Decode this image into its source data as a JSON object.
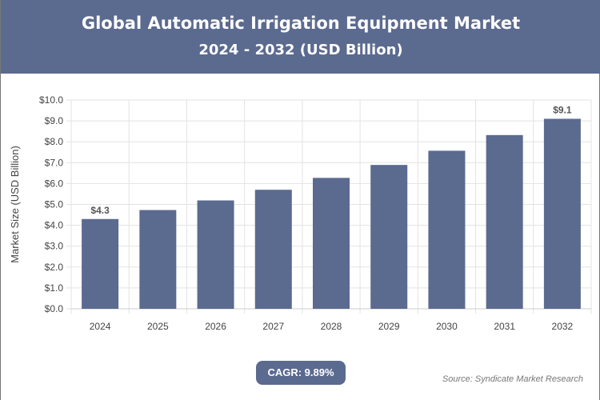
{
  "header": {
    "title": "Global Automatic Irrigation Equipment Market",
    "subtitle": "2024 - 2032 (USD Billion)"
  },
  "chart_data": {
    "type": "bar",
    "title": "Global Automatic Irrigation Equipment Market",
    "subtitle": "2024 - 2032 (USD Billion)",
    "ylabel": "Market Size (USD Billion)",
    "xlabel": "",
    "categories": [
      "2024",
      "2025",
      "2026",
      "2027",
      "2028",
      "2029",
      "2030",
      "2031",
      "2032"
    ],
    "values": [
      4.3,
      4.73,
      5.19,
      5.7,
      6.27,
      6.89,
      7.57,
      8.32,
      9.1
    ],
    "data_labels": {
      "0": "$4.3",
      "8": "$9.1"
    },
    "ylim": [
      0,
      10
    ],
    "yticks": [
      "$0.0",
      "$1.0",
      "$2.0",
      "$3.0",
      "$4.0",
      "$5.0",
      "$6.0",
      "$7.0",
      "$8.0",
      "$9.0",
      "$10.0"
    ],
    "grid": true,
    "bar_color": "#5b6a8f"
  },
  "footer": {
    "cagr": "CAGR: 9.89%",
    "source": "Source: Syndicate Market Research"
  }
}
